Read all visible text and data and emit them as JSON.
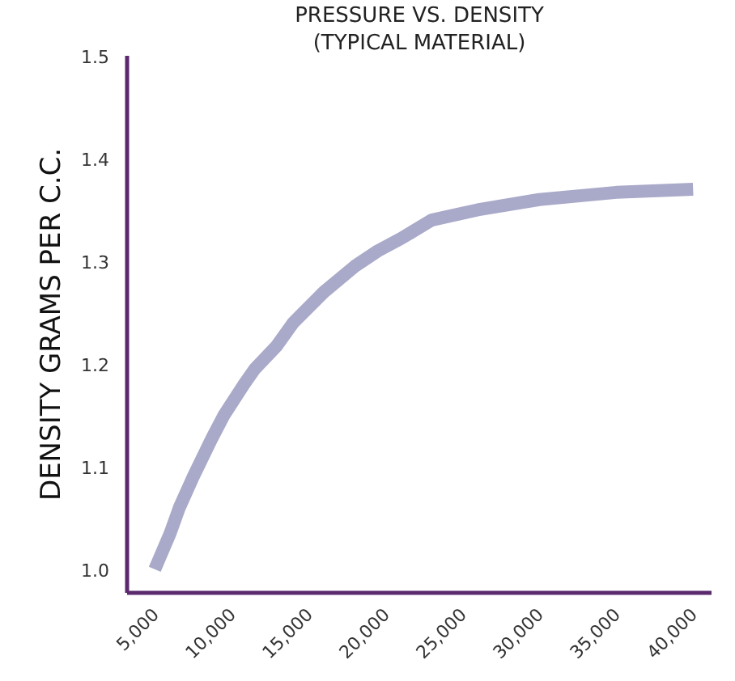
{
  "chart_data": {
    "type": "line",
    "title": "PRESSURE VS. DENSITY",
    "subtitle": "(TYPICAL MATERIAL)",
    "ylabel": "DENSITY GRAMS PER C.C.",
    "x": [
      5000,
      6000,
      6600,
      7500,
      8700,
      9500,
      10800,
      11500,
      12900,
      14000,
      16000,
      18000,
      19500,
      21000,
      23000,
      26000,
      30000,
      35000,
      40000
    ],
    "series": [
      {
        "color": "#a9a9c9",
        "values": [
          1.0,
          1.035,
          1.06,
          1.09,
          1.127,
          1.15,
          1.18,
          1.195,
          1.217,
          1.24,
          1.27,
          1.295,
          1.31,
          1.322,
          1.34,
          1.35,
          1.36,
          1.367,
          1.37
        ]
      }
    ],
    "xlim": [
      3200,
      41200
    ],
    "ylim": [
      0.977,
      1.5
    ],
    "xticks": [
      {
        "value": 5000,
        "label": "5,000"
      },
      {
        "value": 10000,
        "label": "10,000"
      },
      {
        "value": 15000,
        "label": "15,000"
      },
      {
        "value": 20000,
        "label": "20,000"
      },
      {
        "value": 25000,
        "label": "25,000"
      },
      {
        "value": 30000,
        "label": "30,000"
      },
      {
        "value": 35000,
        "label": "35,000"
      },
      {
        "value": 40000,
        "label": "40,000"
      }
    ],
    "yticks": [
      {
        "value": 1.0,
        "label": "1.0"
      },
      {
        "value": 1.1,
        "label": "1.1"
      },
      {
        "value": 1.2,
        "label": "1.2"
      },
      {
        "value": 1.3,
        "label": "1.3"
      },
      {
        "value": 1.4,
        "label": "1.4"
      },
      {
        "value": 1.5,
        "label": "1.5"
      }
    ],
    "grid": false,
    "marker": "none",
    "line_style": "solid"
  }
}
